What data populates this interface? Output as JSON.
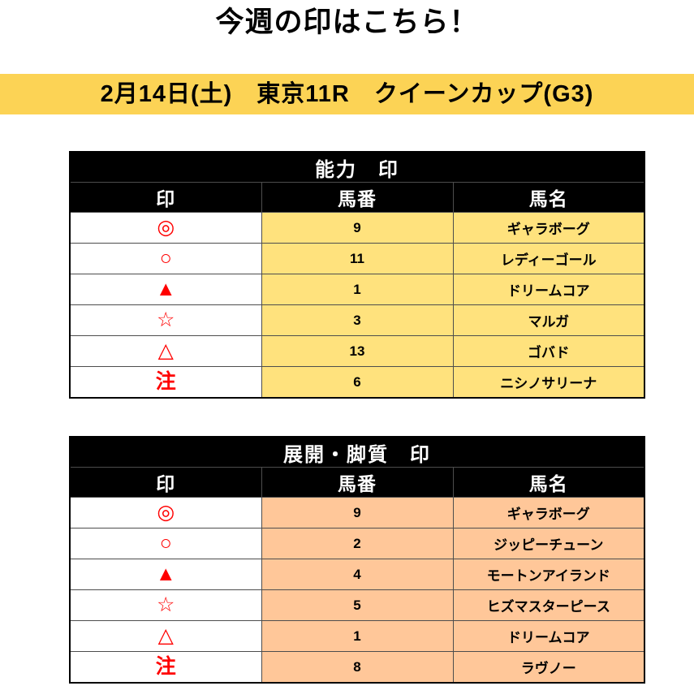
{
  "page": {
    "title": "今週の印はこちら！",
    "race_banner": "2月14日(土)　東京11R　クイーンカップ(G3)"
  },
  "colors": {
    "banner_bg": "#FCD355",
    "table1_row_bg": "#FFE27D",
    "table2_row_bg": "#FFC799",
    "header_bg": "#000000",
    "header_text": "#FFFFFF",
    "mark_red": "#FF0000",
    "border_outer": "#000000",
    "border_inner": "#4D4D4D"
  },
  "tables": [
    {
      "title": "能力　印",
      "columns": [
        "印",
        "馬番",
        "馬名"
      ],
      "rows": [
        {
          "mark": "◎",
          "number": "9",
          "name": "ギャラボーグ"
        },
        {
          "mark": "○",
          "number": "11",
          "name": "レディーゴール"
        },
        {
          "mark": "▲",
          "number": "1",
          "name": "ドリームコア"
        },
        {
          "mark": "☆",
          "number": "3",
          "name": "マルガ"
        },
        {
          "mark": "△",
          "number": "13",
          "name": "ゴバド"
        },
        {
          "mark": "注",
          "number": "6",
          "name": "ニシノサリーナ"
        }
      ]
    },
    {
      "title": "展開・脚質　印",
      "columns": [
        "印",
        "馬番",
        "馬名"
      ],
      "rows": [
        {
          "mark": "◎",
          "number": "9",
          "name": "ギャラボーグ"
        },
        {
          "mark": "○",
          "number": "2",
          "name": "ジッピーチューン"
        },
        {
          "mark": "▲",
          "number": "4",
          "name": "モートンアイランド"
        },
        {
          "mark": "☆",
          "number": "5",
          "name": "ヒズマスターピース"
        },
        {
          "mark": "△",
          "number": "1",
          "name": "ドリームコア"
        },
        {
          "mark": "注",
          "number": "8",
          "name": "ラヴノー"
        }
      ]
    }
  ]
}
